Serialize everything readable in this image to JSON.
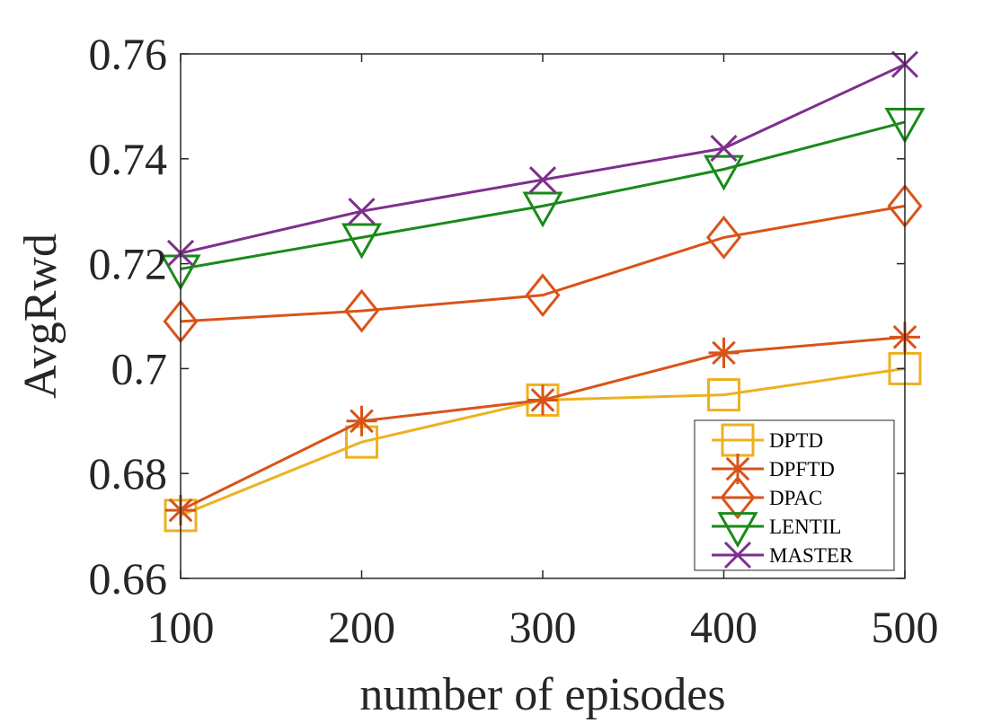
{
  "chart_data": {
    "type": "line",
    "title": "",
    "xlabel": "number of episodes",
    "ylabel": "AvgRwd",
    "x": [
      100,
      200,
      300,
      400,
      500
    ],
    "x_ticks": [
      "100",
      "200",
      "300",
      "400",
      "500"
    ],
    "y_ticks": [
      "0.66",
      "0.68",
      "0.7",
      "0.72",
      "0.74",
      "0.76"
    ],
    "xlim": [
      100,
      500
    ],
    "ylim": [
      0.66,
      0.76
    ],
    "grid": false,
    "legend_position": "bottom-right",
    "series": [
      {
        "name": "DPTD",
        "color": "#EDB120",
        "marker": "square",
        "values": [
          0.672,
          0.686,
          0.694,
          0.695,
          0.7
        ]
      },
      {
        "name": "DPFTD",
        "color": "#D95319",
        "marker": "asterisk",
        "values": [
          0.673,
          0.69,
          0.694,
          0.703,
          0.706
        ]
      },
      {
        "name": "DPAC",
        "color": "#D95319",
        "marker": "diamond",
        "values": [
          0.709,
          0.711,
          0.714,
          0.725,
          0.731
        ]
      },
      {
        "name": "LENTIL",
        "color": "#1A8A1A",
        "marker": "triangle-down",
        "values": [
          0.719,
          0.725,
          0.731,
          0.738,
          0.747
        ]
      },
      {
        "name": "MASTER",
        "color": "#7E2F8E",
        "marker": "x",
        "values": [
          0.722,
          0.73,
          0.736,
          0.742,
          0.758
        ]
      }
    ]
  }
}
